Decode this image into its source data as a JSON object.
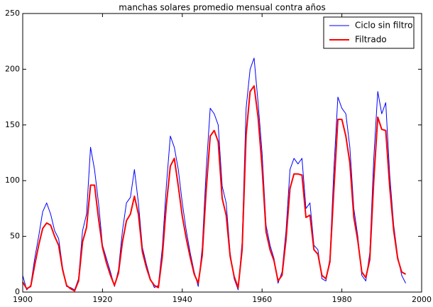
{
  "chart_data": {
    "type": "line",
    "title": "manchas solares promedio mensual contra años",
    "x": [
      1900,
      1901,
      1902,
      1903,
      1904,
      1905,
      1906,
      1907,
      1908,
      1909,
      1910,
      1911,
      1912,
      1913,
      1914,
      1915,
      1916,
      1917,
      1918,
      1919,
      1920,
      1921,
      1922,
      1923,
      1924,
      1925,
      1926,
      1927,
      1928,
      1929,
      1930,
      1931,
      1932,
      1933,
      1934,
      1935,
      1936,
      1937,
      1938,
      1939,
      1940,
      1941,
      1942,
      1943,
      1944,
      1945,
      1946,
      1947,
      1948,
      1949,
      1950,
      1951,
      1952,
      1953,
      1954,
      1955,
      1956,
      1957,
      1958,
      1959,
      1960,
      1961,
      1962,
      1963,
      1964,
      1965,
      1966,
      1967,
      1968,
      1969,
      1970,
      1971,
      1972,
      1973,
      1974,
      1975,
      1976,
      1977,
      1978,
      1979,
      1980,
      1981,
      1982,
      1983,
      1984,
      1985,
      1986,
      1987,
      1988,
      1989,
      1990,
      1991,
      1992,
      1993,
      1994,
      1995,
      1996
    ],
    "series": [
      {
        "name": "Ciclo sin filtro",
        "color": "#0000ff",
        "line_width": 1,
        "values": [
          15,
          2,
          6,
          30,
          50,
          72,
          80,
          70,
          55,
          48,
          22,
          5,
          4,
          2,
          12,
          55,
          70,
          130,
          110,
          80,
          42,
          30,
          18,
          5,
          20,
          55,
          80,
          85,
          110,
          80,
          40,
          25,
          12,
          4,
          6,
          40,
          95,
          140,
          130,
          110,
          80,
          55,
          35,
          18,
          5,
          40,
          110,
          165,
          160,
          150,
          95,
          80,
          35,
          12,
          2,
          45,
          165,
          200,
          210,
          170,
          125,
          60,
          42,
          30,
          8,
          18,
          55,
          110,
          120,
          115,
          120,
          75,
          80,
          42,
          38,
          12,
          10,
          30,
          110,
          175,
          165,
          160,
          130,
          75,
          50,
          15,
          10,
          35,
          120,
          180,
          160,
          170,
          105,
          60,
          32,
          15,
          8
        ]
      },
      {
        "name": "Filtrado",
        "color": "#ff0000",
        "line_width": 2,
        "values": [
          9,
          3,
          5,
          24,
          42,
          57,
          62,
          60,
          50,
          42,
          20,
          6,
          3,
          1,
          10,
          45,
          58,
          96,
          96,
          66,
          40,
          26,
          15,
          6,
          17,
          45,
          64,
          70,
          86,
          70,
          36,
          22,
          11,
          6,
          4,
          32,
          78,
          113,
          120,
          95,
          68,
          48,
          31,
          16,
          8,
          33,
          92,
          140,
          145,
          135,
          84,
          69,
          32,
          14,
          4,
          38,
          141,
          180,
          185,
          157,
          112,
          54,
          38,
          28,
          10,
          15,
          47,
          93,
          106,
          106,
          105,
          67,
          69,
          38,
          34,
          15,
          12,
          27,
          92,
          155,
          155,
          140,
          116,
          67,
          46,
          18,
          13,
          29,
          100,
          157,
          146,
          145,
          94,
          55,
          30,
          18,
          16
        ]
      }
    ],
    "xlim": [
      1900,
      2000
    ],
    "ylim": [
      0,
      250
    ],
    "xticks": [
      1900,
      1920,
      1940,
      1960,
      1980,
      2000
    ],
    "yticks": [
      0,
      50,
      100,
      150,
      200,
      250
    ],
    "legend": "upper right"
  }
}
